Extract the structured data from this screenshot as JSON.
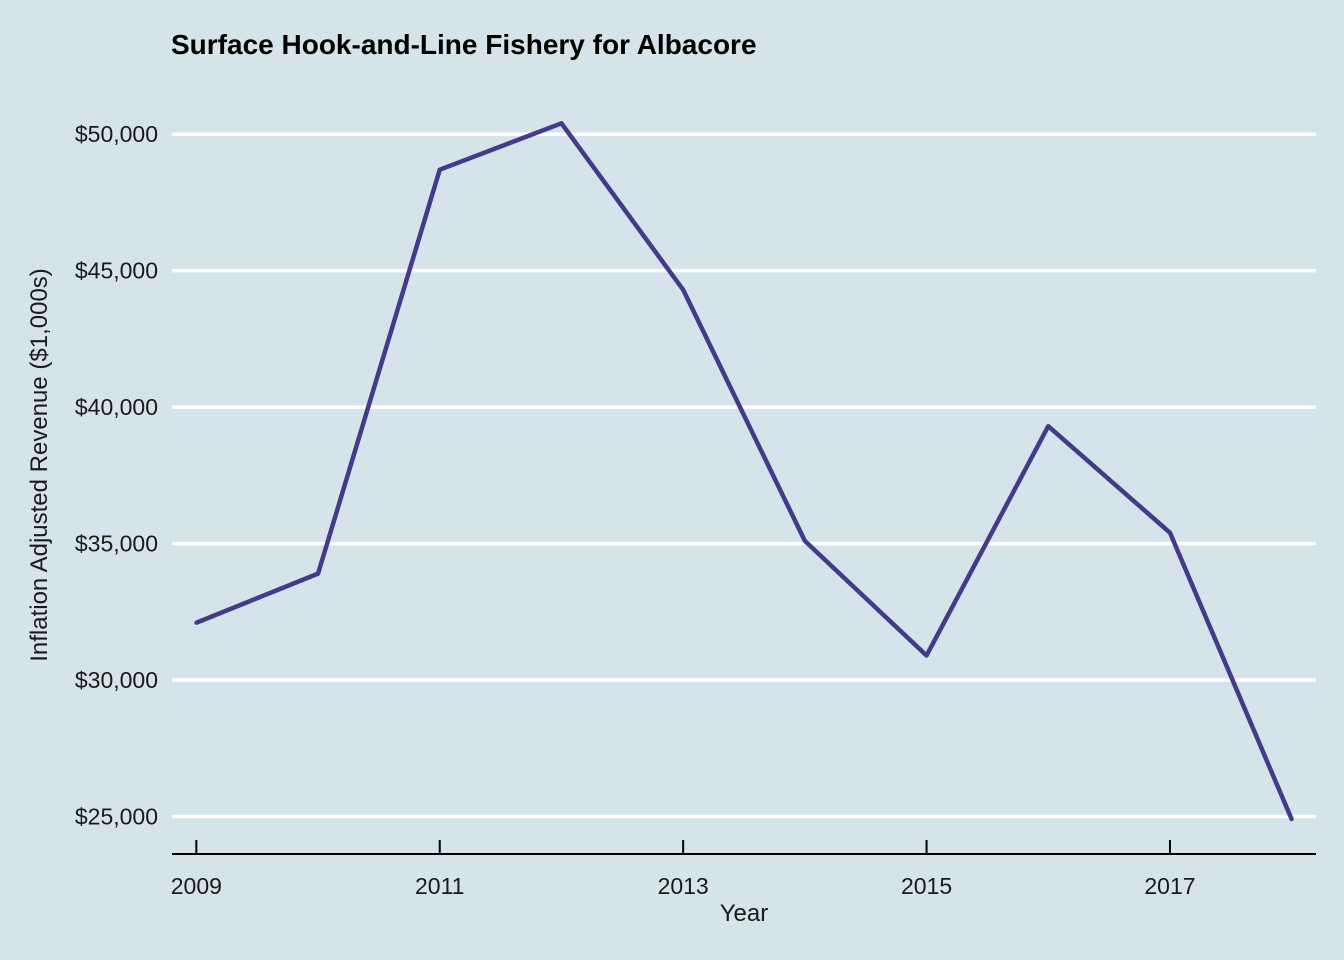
{
  "chart_data": {
    "type": "line",
    "title": "Surface Hook-and-Line Fishery for Albacore",
    "xlabel": "Year",
    "ylabel": "Inflation Adjusted Revenue ($1,000s)",
    "x": [
      2009,
      2010,
      2011,
      2012,
      2013,
      2014,
      2015,
      2016,
      2017,
      2018
    ],
    "series": [
      {
        "values": [
          32100,
          33900,
          48700,
          50400,
          44300,
          35100,
          30900,
          39300,
          35400,
          24900
        ],
        "color": "#453a8a"
      }
    ],
    "xlim": [
      2008.8,
      2018.2
    ],
    "ylim": [
      23700,
      51400
    ],
    "x_ticks": [
      2009,
      2011,
      2013,
      2015,
      2017
    ],
    "x_tick_labels": [
      "2009",
      "2011",
      "2013",
      "2015",
      "2017"
    ],
    "y_ticks": [
      25000,
      30000,
      35000,
      40000,
      45000,
      50000
    ],
    "y_tick_labels": [
      "$25,000",
      "$30,000",
      "$35,000",
      "$40,000",
      "$45,000",
      "$50,000"
    ],
    "grid": "horizontal",
    "background_color": "#d5e3eb",
    "grid_color": "#ffffff",
    "axis_color": "#000000"
  }
}
